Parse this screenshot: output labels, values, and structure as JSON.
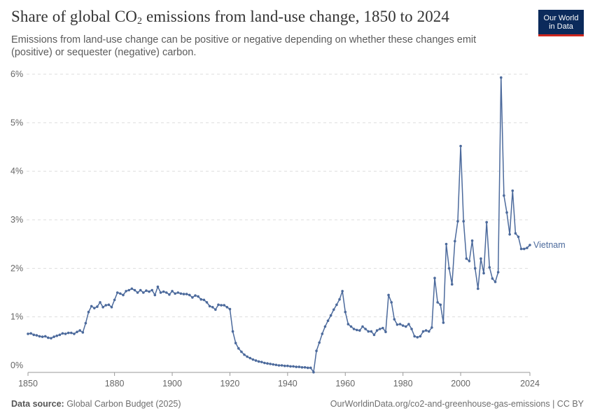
{
  "header": {
    "title_prefix": "Share of global CO",
    "title_sub": "2",
    "title_suffix": " emissions from land-use change, 1850 to 2024",
    "subtitle": "Emissions from land-use change can be positive or negative depending on whether these changes emit (positive) or sequester (negative) carbon."
  },
  "logo": {
    "line1": "Our World",
    "line2": "in Data",
    "bg_color": "#0b2a5b",
    "accent_color": "#ce261e"
  },
  "footer": {
    "source_label": "Data source:",
    "source_value": " Global Carbon Budget (2025)",
    "url": "OurWorldinData.org/co2-and-greenhouse-gas-emissions | CC BY"
  },
  "chart_data": {
    "type": "line",
    "title": "Share of global CO₂ emissions from land-use change, 1850 to 2024",
    "xlabel": "",
    "ylabel": "",
    "xlim": [
      1850,
      2024
    ],
    "ylim": [
      0,
      6
    ],
    "x_ticks": [
      1850,
      1880,
      1900,
      1920,
      1940,
      1960,
      1980,
      2000,
      2024
    ],
    "y_ticks": [
      0,
      1,
      2,
      3,
      4,
      5,
      6
    ],
    "y_tick_labels": [
      "0%",
      "1%",
      "2%",
      "3%",
      "4%",
      "5%",
      "6%"
    ],
    "grid": "horizontal dashed",
    "legend": "inline label at end of line",
    "series": [
      {
        "name": "Vietnam",
        "color": "#4c6a9c",
        "x": [
          1850,
          1851,
          1852,
          1853,
          1854,
          1855,
          1856,
          1857,
          1858,
          1859,
          1860,
          1861,
          1862,
          1863,
          1864,
          1865,
          1866,
          1867,
          1868,
          1869,
          1870,
          1871,
          1872,
          1873,
          1874,
          1875,
          1876,
          1877,
          1878,
          1879,
          1880,
          1881,
          1882,
          1883,
          1884,
          1885,
          1886,
          1887,
          1888,
          1889,
          1890,
          1891,
          1892,
          1893,
          1894,
          1895,
          1896,
          1897,
          1898,
          1899,
          1900,
          1901,
          1902,
          1903,
          1904,
          1905,
          1906,
          1907,
          1908,
          1909,
          1910,
          1911,
          1912,
          1913,
          1914,
          1915,
          1916,
          1917,
          1918,
          1919,
          1920,
          1921,
          1922,
          1923,
          1924,
          1925,
          1926,
          1927,
          1928,
          1929,
          1930,
          1931,
          1932,
          1933,
          1934,
          1935,
          1936,
          1937,
          1938,
          1939,
          1940,
          1941,
          1942,
          1943,
          1944,
          1945,
          1946,
          1947,
          1948,
          1949,
          1950,
          1951,
          1952,
          1953,
          1954,
          1955,
          1956,
          1957,
          1958,
          1959,
          1960,
          1961,
          1962,
          1963,
          1964,
          1965,
          1966,
          1967,
          1968,
          1969,
          1970,
          1971,
          1972,
          1973,
          1974,
          1975,
          1976,
          1977,
          1978,
          1979,
          1980,
          1981,
          1982,
          1983,
          1984,
          1985,
          1986,
          1987,
          1988,
          1989,
          1990,
          1991,
          1992,
          1993,
          1994,
          1995,
          1996,
          1997,
          1998,
          1999,
          2000,
          2001,
          2002,
          2003,
          2004,
          2005,
          2006,
          2007,
          2008,
          2009,
          2010,
          2011,
          2012,
          2013,
          2014,
          2015,
          2016,
          2017,
          2018,
          2019,
          2020,
          2021,
          2022,
          2023,
          2024
        ],
        "y": [
          0.65,
          0.66,
          0.63,
          0.62,
          0.6,
          0.59,
          0.6,
          0.57,
          0.56,
          0.59,
          0.61,
          0.63,
          0.66,
          0.65,
          0.67,
          0.67,
          0.65,
          0.69,
          0.72,
          0.68,
          0.87,
          1.1,
          1.22,
          1.18,
          1.21,
          1.3,
          1.2,
          1.24,
          1.25,
          1.2,
          1.35,
          1.5,
          1.48,
          1.45,
          1.53,
          1.55,
          1.58,
          1.55,
          1.5,
          1.55,
          1.5,
          1.54,
          1.52,
          1.55,
          1.45,
          1.62,
          1.5,
          1.52,
          1.5,
          1.46,
          1.53,
          1.48,
          1.5,
          1.48,
          1.47,
          1.47,
          1.45,
          1.4,
          1.44,
          1.42,
          1.36,
          1.35,
          1.3,
          1.22,
          1.2,
          1.15,
          1.25,
          1.24,
          1.24,
          1.2,
          1.16,
          0.7,
          0.46,
          0.35,
          0.28,
          0.22,
          0.18,
          0.15,
          0.12,
          0.1,
          0.08,
          0.07,
          0.05,
          0.04,
          0.03,
          0.02,
          0.01,
          0.0,
          0.0,
          -0.01,
          -0.01,
          -0.02,
          -0.02,
          -0.03,
          -0.03,
          -0.04,
          -0.04,
          -0.05,
          -0.05,
          -0.14,
          0.3,
          0.47,
          0.65,
          0.8,
          0.92,
          1.03,
          1.15,
          1.25,
          1.36,
          1.53,
          1.1,
          0.85,
          0.8,
          0.75,
          0.73,
          0.72,
          0.8,
          0.75,
          0.7,
          0.7,
          0.63,
          0.72,
          0.75,
          0.77,
          0.69,
          1.45,
          1.3,
          0.95,
          0.84,
          0.85,
          0.82,
          0.8,
          0.85,
          0.75,
          0.6,
          0.58,
          0.6,
          0.7,
          0.72,
          0.7,
          0.78,
          1.8,
          1.3,
          1.25,
          0.88,
          2.5,
          2.0,
          1.67,
          2.56,
          2.97,
          4.52,
          2.97,
          2.2,
          2.15,
          2.57,
          2.0,
          1.58,
          2.2,
          1.9,
          2.95,
          2.02,
          1.79,
          1.72,
          1.92,
          5.93,
          3.5,
          3.15,
          2.7,
          3.6,
          2.72,
          2.65,
          2.4,
          2.4,
          2.42,
          2.48
        ]
      }
    ]
  }
}
